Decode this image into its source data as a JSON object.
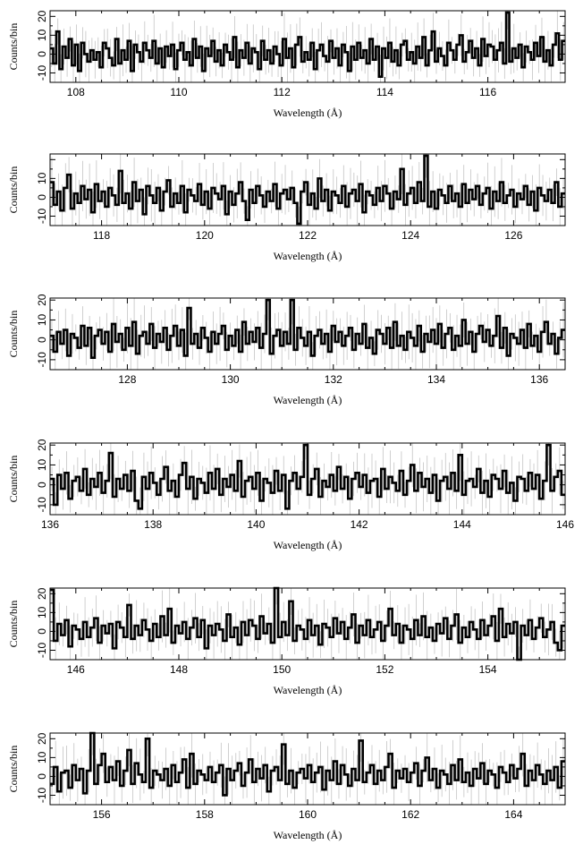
{
  "chart_data": [
    {
      "type": "line",
      "xlabel": "Wavelength (Å)",
      "ylabel": "Counts/bin",
      "xlim": [
        107.5,
        117.5
      ],
      "ylim": [
        -15,
        23
      ],
      "xticks": [
        108,
        110,
        112,
        114,
        116
      ],
      "yticks": [
        -10,
        0,
        10,
        20
      ],
      "values": [
        3,
        -5,
        12,
        -8,
        4,
        -2,
        8,
        -6,
        5,
        -9,
        6,
        0,
        -4,
        2,
        -3,
        1,
        -7,
        6,
        3,
        -2,
        -6,
        8,
        -5,
        2,
        -3,
        7,
        -9,
        5,
        1,
        -4,
        6,
        2,
        -2,
        7,
        -5,
        3,
        -7,
        4,
        -1,
        5,
        -8,
        2,
        6,
        -3,
        1,
        -6,
        8,
        -2,
        4,
        -9,
        3,
        -1,
        7,
        -4,
        2,
        -6,
        5,
        1,
        -3,
        9,
        -7,
        2,
        -2,
        6,
        -5,
        3,
        1,
        -8,
        7,
        -3,
        2,
        -5,
        4,
        0,
        -6,
        8,
        -2,
        3,
        -7,
        5,
        9,
        -4,
        1,
        -3,
        6,
        -8,
        2,
        5,
        -1,
        -4,
        7,
        -2,
        3,
        -6,
        5,
        1,
        -9,
        4,
        -3,
        6,
        -2,
        2,
        -5,
        8,
        -3,
        4,
        -12,
        3,
        -2,
        6,
        -4,
        2,
        -6,
        5,
        7,
        -3,
        1,
        -5,
        4,
        -2,
        9,
        -6,
        2,
        12,
        -4,
        3,
        -1,
        -6,
        6,
        2,
        -3,
        5,
        10,
        -4,
        1,
        7,
        -2,
        3,
        -6,
        8,
        -1,
        5,
        4,
        -3,
        2,
        6,
        -5,
        22,
        -4,
        3,
        -2,
        5,
        -7,
        4,
        1,
        -3,
        6,
        -1,
        9,
        -4,
        2,
        -6,
        5,
        11,
        -3,
        7
      ]
    },
    {
      "type": "line",
      "xlabel": "Wavelength (Å)",
      "ylabel": "Counts/bin",
      "xlim": [
        117,
        127
      ],
      "ylim": [
        -15,
        23
      ],
      "xticks": [
        118,
        120,
        122,
        124,
        126
      ],
      "yticks": [
        -10,
        0,
        10
      ],
      "values": [
        8,
        -4,
        3,
        -7,
        5,
        12,
        -6,
        2,
        -3,
        6,
        -1,
        4,
        -8,
        7,
        -2,
        3,
        -5,
        5,
        1,
        -4,
        14,
        -3,
        2,
        -6,
        8,
        -2,
        4,
        -9,
        6,
        1,
        -3,
        5,
        -7,
        3,
        9,
        -5,
        2,
        -3,
        6,
        -8,
        4,
        1,
        -2,
        7,
        -4,
        3,
        -6,
        5,
        2,
        -1,
        6,
        -9,
        3,
        -4,
        2,
        8,
        -2,
        -12,
        4,
        -3,
        6,
        1,
        -5,
        3,
        -2,
        7,
        -6,
        2,
        4,
        -1,
        5,
        -3,
        -14,
        3,
        8,
        -4,
        2,
        -6,
        10,
        -2,
        4,
        -7,
        3,
        1,
        -3,
        6,
        -5,
        2,
        4,
        -2,
        7,
        -8,
        3,
        1,
        -4,
        5,
        -2,
        6,
        2,
        -6,
        3,
        -1,
        15,
        -4,
        2,
        5,
        -3,
        8,
        -2,
        22,
        -5,
        3,
        -6,
        4,
        1,
        -3,
        6,
        -2,
        2,
        -5,
        7,
        -3,
        4,
        -1,
        6,
        -4,
        2,
        5,
        -6,
        3,
        -2,
        8,
        -3,
        1,
        4,
        -5,
        2,
        -1,
        6,
        -4,
        3,
        -7,
        5,
        1,
        -2,
        4,
        -3,
        8,
        -5,
        2
      ]
    },
    {
      "type": "line",
      "xlabel": "Wavelength (Å)",
      "ylabel": "Counts/bin",
      "xlim": [
        126.5,
        136.5
      ],
      "ylim": [
        -15,
        21
      ],
      "xticks": [
        128,
        130,
        132,
        134,
        136
      ],
      "yticks": [
        -10,
        0,
        10,
        20
      ],
      "values": [
        2,
        -6,
        4,
        -2,
        5,
        -8,
        3,
        1,
        -4,
        7,
        -3,
        6,
        -9,
        2,
        5,
        -2,
        4,
        -6,
        8,
        -1,
        3,
        -5,
        6,
        -3,
        9,
        -7,
        2,
        4,
        -2,
        8,
        -4,
        3,
        -1,
        6,
        -5,
        2,
        7,
        -3,
        5,
        -8,
        16,
        -2,
        3,
        -4,
        6,
        1,
        -6,
        4,
        -2,
        3,
        7,
        -5,
        2,
        -3,
        5,
        -6,
        9,
        -2,
        4,
        -1,
        6,
        -4,
        3,
        20,
        -7,
        2,
        5,
        -3,
        4,
        -2,
        20,
        -5,
        6,
        1,
        -3,
        4,
        -8,
        2,
        5,
        -2,
        3,
        -6,
        7,
        -1,
        4,
        -3,
        2,
        6,
        -5,
        3,
        -2,
        8,
        -4,
        1,
        -7,
        5,
        3,
        -2,
        6,
        -4,
        9,
        -3,
        2,
        -5,
        4,
        1,
        -3,
        7,
        -6,
        3,
        -1,
        5,
        -2,
        8,
        -4,
        3,
        6,
        -5,
        2,
        -3,
        10,
        -2,
        4,
        -6,
        3,
        7,
        -1,
        5,
        -3,
        2,
        12,
        -4,
        6,
        -8,
        3,
        1,
        -2,
        5,
        -4,
        8,
        -3,
        2,
        -6,
        4,
        9,
        -2,
        3,
        -7,
        1,
        5
      ]
    },
    {
      "type": "line",
      "xlabel": "Wavelength (Å)",
      "ylabel": "Counts/bin",
      "xlim": [
        136,
        146
      ],
      "ylim": [
        -15,
        21
      ],
      "xticks": [
        136,
        138,
        140,
        142,
        144,
        146
      ],
      "yticks": [
        -10,
        0,
        10,
        20
      ],
      "values": [
        3,
        -10,
        5,
        -2,
        6,
        -7,
        2,
        4,
        -3,
        8,
        -5,
        3,
        -1,
        6,
        -4,
        2,
        16,
        -6,
        3,
        -2,
        5,
        -3,
        7,
        -8,
        -12,
        4,
        -2,
        6,
        1,
        -5,
        3,
        9,
        -3,
        2,
        -6,
        5,
        11,
        -2,
        4,
        -7,
        3,
        1,
        -4,
        6,
        -2,
        8,
        -5,
        3,
        -1,
        5,
        -3,
        12,
        -6,
        2,
        4,
        -2,
        6,
        -8,
        3,
        1,
        -4,
        7,
        -3,
        5,
        -12,
        2,
        6,
        -2,
        4,
        20,
        -5,
        3,
        8,
        -6,
        2,
        -1,
        5,
        -3,
        9,
        -2,
        4,
        -7,
        3,
        6,
        -1,
        5,
        -4,
        2,
        3,
        -6,
        8,
        -2,
        4,
        1,
        -3,
        7,
        -5,
        2,
        10,
        -3,
        6,
        -1,
        3,
        -4,
        5,
        -8,
        2,
        4,
        -2,
        6,
        -3,
        15,
        -5,
        2,
        3,
        -1,
        8,
        -4,
        2,
        -6,
        5,
        3,
        -2,
        7,
        -4,
        1,
        -8,
        4,
        3,
        -3,
        6,
        -2,
        5,
        -7,
        2,
        20,
        -3,
        4,
        7,
        -5
      ]
    },
    {
      "type": "line",
      "xlabel": "Wavelength (Å)",
      "ylabel": "Counts/bin",
      "xlim": [
        145.5,
        155.5
      ],
      "ylim": [
        -15,
        23
      ],
      "xticks": [
        146,
        148,
        150,
        152,
        154
      ],
      "yticks": [
        -10,
        0,
        10,
        20
      ],
      "values": [
        22,
        -5,
        4,
        -2,
        6,
        -8,
        3,
        1,
        -4,
        5,
        -3,
        2,
        7,
        -6,
        3,
        -1,
        4,
        -9,
        5,
        2,
        -3,
        14,
        -4,
        3,
        -2,
        6,
        1,
        -5,
        4,
        -3,
        8,
        -2,
        12,
        -6,
        3,
        -1,
        5,
        -4,
        2,
        7,
        -3,
        6,
        -9,
        3,
        -2,
        4,
        1,
        -5,
        9,
        -3,
        2,
        -7,
        5,
        -2,
        6,
        3,
        -4,
        8,
        -1,
        4,
        -6,
        23,
        -3,
        5,
        -2,
        16,
        -5,
        3,
        1,
        -4,
        6,
        -2,
        3,
        -7,
        4,
        2,
        -3,
        7,
        -1,
        5,
        -4,
        2,
        9,
        -6,
        3,
        -2,
        6,
        -3,
        1,
        5,
        -5,
        3,
        12,
        -2,
        4,
        -6,
        3,
        1,
        -4,
        6,
        -2,
        8,
        -3,
        2,
        -5,
        4,
        -1,
        7,
        -4,
        3,
        9,
        -6,
        2,
        -3,
        5,
        1,
        -4,
        6,
        -2,
        3,
        8,
        -5,
        12,
        -3,
        4,
        -1,
        5,
        -16,
        3,
        -2,
        6,
        -4,
        2,
        7,
        -3,
        1,
        5,
        -6,
        -10,
        3
      ]
    },
    {
      "type": "line",
      "xlabel": "Wavelength (Å)",
      "ylabel": "Counts/bin",
      "xlim": [
        155,
        165
      ],
      "ylim": [
        -15,
        23
      ],
      "xticks": [
        156,
        158,
        160,
        162,
        164
      ],
      "yticks": [
        -10,
        0,
        10,
        20
      ],
      "values": [
        -4,
        5,
        -8,
        2,
        3,
        -6,
        6,
        -2,
        4,
        -9,
        3,
        23,
        -4,
        6,
        12,
        -3,
        5,
        -2,
        8,
        -5,
        3,
        14,
        -4,
        7,
        1,
        -3,
        20,
        -6,
        3,
        1,
        -2,
        4,
        -5,
        6,
        -3,
        2,
        9,
        -6,
        12,
        -4,
        3,
        1,
        -2,
        5,
        -3,
        2,
        6,
        -10,
        4,
        -2,
        3,
        7,
        -5,
        2,
        9,
        -3,
        4,
        -1,
        6,
        -8,
        3,
        5,
        -2,
        17,
        -4,
        3,
        -6,
        2,
        4,
        -1,
        6,
        -3,
        2,
        5,
        -7,
        3,
        -2,
        8,
        -4,
        6,
        1,
        -5,
        4,
        -2,
        19,
        -3,
        2,
        6,
        -4,
        3,
        -2,
        5,
        12,
        -6,
        3,
        -1,
        4,
        -3,
        2,
        7,
        -5,
        3,
        10,
        -2,
        4,
        -6,
        3,
        1,
        -4,
        6,
        -2,
        9,
        -3,
        2,
        -5,
        4,
        -1,
        7,
        -4,
        3,
        1,
        -6,
        5,
        2,
        -3,
        6,
        -1,
        4,
        12,
        -5,
        3,
        -2,
        6,
        1,
        -4,
        3,
        -2,
        5,
        -6,
        8
      ]
    }
  ]
}
